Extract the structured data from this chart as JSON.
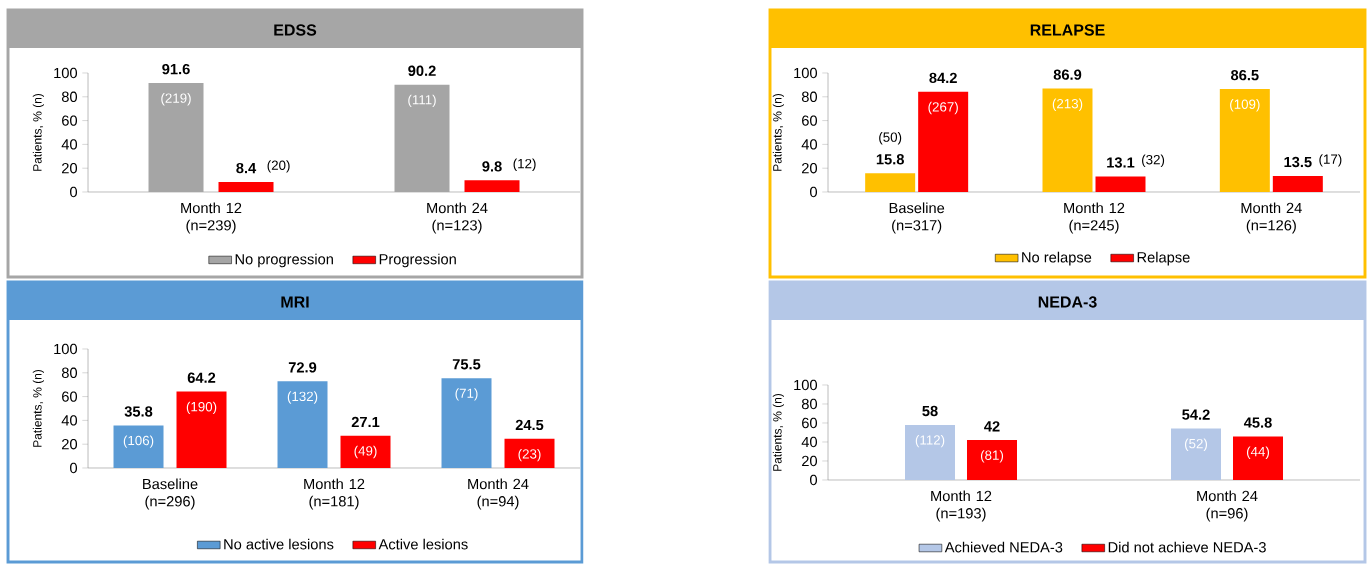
{
  "chart_data": [
    {
      "type": "bar",
      "title": "EDSS",
      "ylabel": "Patients, % (n)",
      "categories": [
        "Month 12 (n=239)",
        "Month 24 (n=123)"
      ],
      "series": [
        {
          "name": "No progression",
          "color": "#a5a5a5",
          "values": [
            91.6,
            90.2
          ]
        },
        {
          "name": "Progression",
          "color": "#ff0000",
          "values": [
            8.4,
            9.8
          ]
        }
      ],
      "ylim": [
        0,
        100
      ],
      "yticks": [
        0,
        20,
        40,
        60,
        80,
        100
      ],
      "data_labels": true,
      "legend": "bottom",
      "grid": false,
      "annotations": [
        "(219)",
        "(111)",
        "(20)",
        "(12)"
      ]
    },
    {
      "type": "bar",
      "title": "RELAPSE",
      "ylabel": "Patients, % (n)",
      "categories": [
        "Baseline (n=317)",
        "Month 12 (n=245)",
        "Month 24 (n=126)"
      ],
      "series": [
        {
          "name": "No relapse",
          "color": "#ffc000",
          "values": [
            15.8,
            86.9,
            86.5
          ]
        },
        {
          "name": "Relapse",
          "color": "#ff0000",
          "values": [
            84.2,
            13.1,
            13.5
          ]
        }
      ],
      "ylim": [
        0,
        100
      ],
      "yticks": [
        0,
        20,
        40,
        60,
        80,
        100
      ],
      "data_labels": true,
      "legend": "bottom",
      "grid": false,
      "annotations": [
        "(50)",
        "(213)",
        "(109)",
        "(267)",
        "(32)",
        "(17)"
      ]
    },
    {
      "type": "bar",
      "title": "MRI",
      "ylabel": "Patients, % (n)",
      "categories": [
        "Baseline (n=296)",
        "Month 12 (n=181)",
        "Month 24 (n=94)"
      ],
      "series": [
        {
          "name": "No active lesions",
          "color": "#5b9bd5",
          "values": [
            35.8,
            72.9,
            75.5
          ]
        },
        {
          "name": "Active lesions",
          "color": "#ff0000",
          "values": [
            64.2,
            27.1,
            24.5
          ]
        }
      ],
      "ylim": [
        0,
        100
      ],
      "yticks": [
        0,
        20,
        40,
        60,
        80,
        100
      ],
      "data_labels": true,
      "legend": "bottom",
      "grid": false,
      "annotations": [
        "(106)",
        "(132)",
        "(71)",
        "(190)",
        "(49)",
        "(23)"
      ]
    },
    {
      "type": "bar",
      "title": "NEDA-3",
      "ylabel": "Patients, % (n)",
      "categories": [
        "Month 12 (n=193)",
        "Month 24 (n=96)"
      ],
      "series": [
        {
          "name": "Achieved NEDA-3",
          "color": "#b4c7e7",
          "values": [
            58,
            54.2
          ]
        },
        {
          "name": "Did not achieve NEDA-3",
          "color": "#ff0000",
          "values": [
            42,
            45.8
          ]
        }
      ],
      "ylim": [
        0,
        100
      ],
      "yticks": [
        0,
        20,
        40,
        60,
        80,
        100
      ],
      "data_labels": true,
      "legend": "bottom",
      "grid": false,
      "annotations": [
        "(112)",
        "(52)",
        "(81)",
        "(44)"
      ]
    }
  ]
}
